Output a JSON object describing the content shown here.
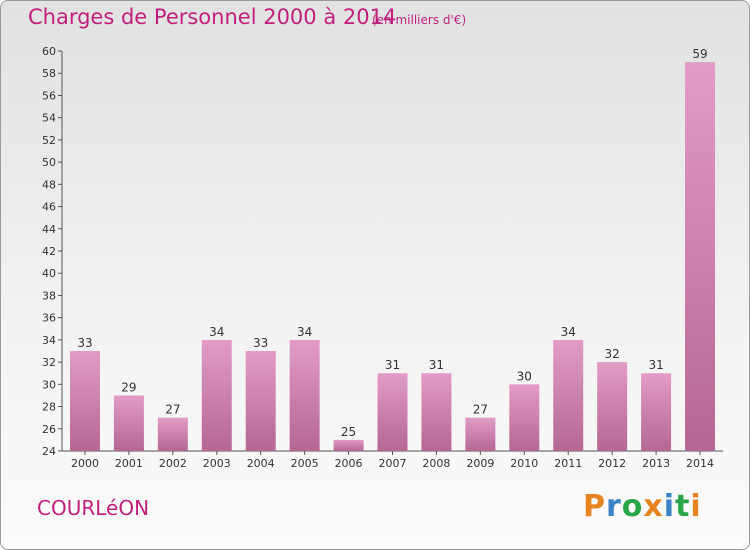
{
  "header": {
    "title": "Charges de Personnel 2000 à 2014",
    "subtitle": "(en milliers d'€)"
  },
  "footer": {
    "city": "COURLéON",
    "logo_text": "Proxiti"
  },
  "colors": {
    "accent": "#c21f7d",
    "bar_top": "#e29cc7",
    "bar_bottom": "#b46792",
    "logo_letters": [
      "#e8831f",
      "#3a83c5",
      "#2aa64a",
      "#e8831f",
      "#3a83c5",
      "#2aa64a",
      "#e8831f"
    ]
  },
  "chart_data": {
    "type": "bar",
    "categories": [
      "2000",
      "2001",
      "2002",
      "2003",
      "2004",
      "2005",
      "2006",
      "2007",
      "2008",
      "2009",
      "2010",
      "2011",
      "2012",
      "2013",
      "2014"
    ],
    "values": [
      33,
      29,
      27,
      34,
      33,
      34,
      25,
      31,
      31,
      27,
      30,
      34,
      32,
      31,
      59
    ],
    "title": "Charges de Personnel 2000 à 2014",
    "subtitle": "(en milliers d'€)",
    "xlabel": "",
    "ylabel": "",
    "ylim": [
      24,
      60
    ],
    "ytick_step": 2,
    "grid": false,
    "data_labels": true
  }
}
